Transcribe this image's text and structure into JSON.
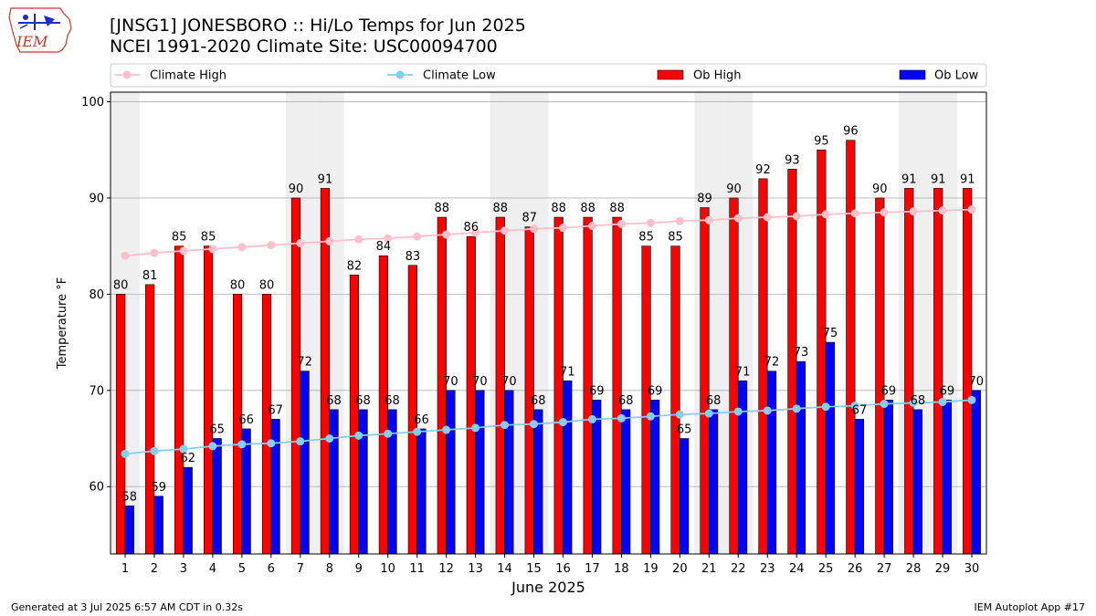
{
  "header": {
    "title_line1": "[JNSG1] JONESBORO :: Hi/Lo Temps for Jun 2025",
    "title_line2": "NCEI 1991-2020 Climate Site: USC00094700",
    "logo_text": "IEM"
  },
  "footer": {
    "generated": "Generated at 3 Jul 2025 6:57 AM CDT in 0.32s",
    "app": "IEM Autoplot App #17"
  },
  "colors": {
    "ob_high": "#ff0000",
    "ob_low": "#0000ff",
    "climate_high": "#ffc0cb",
    "climate_low": "#87ceeb",
    "weekend_shade": "#efefef"
  },
  "chart_data": {
    "type": "bar",
    "title": "[JNSG1] JONESBORO :: Hi/Lo Temps for Jun 2025",
    "subtitle": "NCEI 1991-2020 Climate Site: USC00094700",
    "xlabel": "June 2025",
    "ylabel": "Temperature °F",
    "ylim": [
      53,
      101
    ],
    "yticks": [
      60,
      70,
      80,
      90,
      100
    ],
    "grid": true,
    "legend_position": "top",
    "categories": [
      "1",
      "2",
      "3",
      "4",
      "5",
      "6",
      "7",
      "8",
      "9",
      "10",
      "11",
      "12",
      "13",
      "14",
      "15",
      "16",
      "17",
      "18",
      "19",
      "20",
      "21",
      "22",
      "23",
      "24",
      "25",
      "26",
      "27",
      "28",
      "29",
      "30"
    ],
    "shaded_days": [
      1,
      7,
      8,
      14,
      15,
      21,
      22,
      28,
      29
    ],
    "series": [
      {
        "name": "Ob High",
        "kind": "bar",
        "values": [
          80,
          81,
          85,
          85,
          80,
          80,
          90,
          91,
          82,
          84,
          83,
          88,
          86,
          88,
          87,
          88,
          88,
          88,
          85,
          85,
          89,
          90,
          92,
          93,
          95,
          96,
          90,
          91,
          91,
          91
        ]
      },
      {
        "name": "Ob Low",
        "kind": "bar",
        "values": [
          58,
          59,
          62,
          65,
          66,
          67,
          72,
          68,
          68,
          68,
          66,
          70,
          70,
          70,
          68,
          71,
          69,
          68,
          69,
          65,
          68,
          71,
          72,
          73,
          75,
          67,
          69,
          68,
          69,
          70
        ]
      },
      {
        "name": "Climate High",
        "kind": "line",
        "values": [
          84.0,
          84.3,
          84.5,
          84.7,
          84.9,
          85.1,
          85.3,
          85.5,
          85.7,
          85.8,
          86.0,
          86.2,
          86.4,
          86.6,
          86.8,
          86.9,
          87.1,
          87.3,
          87.4,
          87.6,
          87.7,
          87.9,
          88.0,
          88.1,
          88.3,
          88.4,
          88.5,
          88.6,
          88.7,
          88.8
        ]
      },
      {
        "name": "Climate Low",
        "kind": "line",
        "values": [
          63.4,
          63.7,
          63.9,
          64.2,
          64.4,
          64.5,
          64.7,
          65.0,
          65.3,
          65.5,
          65.7,
          65.9,
          66.1,
          66.4,
          66.5,
          66.7,
          67.0,
          67.1,
          67.3,
          67.5,
          67.6,
          67.8,
          67.9,
          68.1,
          68.3,
          68.4,
          68.6,
          68.7,
          68.8,
          69.0
        ]
      }
    ]
  }
}
